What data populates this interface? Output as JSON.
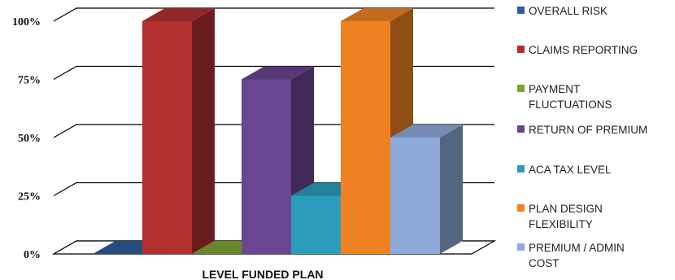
{
  "chart_data": {
    "type": "bar",
    "style": "3d-clustered-column",
    "categories": [
      "LEVEL FUNDED PLAN"
    ],
    "xlabel": "LEVEL FUNDED PLAN",
    "ylim": [
      0,
      100
    ],
    "ytick_labels": [
      "0%",
      "25%",
      "50%",
      "75%",
      "100%"
    ],
    "grid": true,
    "legend_position": "right",
    "series": [
      {
        "name": "OVERALL RISK",
        "values": [
          0
        ],
        "color": "#2E5E99"
      },
      {
        "name": "CLAIMS REPORTING",
        "values": [
          100
        ],
        "color": "#B23030"
      },
      {
        "name": "PAYMENT FLUCTUATIONS",
        "values": [
          0
        ],
        "color": "#7FA333"
      },
      {
        "name": "RETURN OF PREMIUM",
        "values": [
          75
        ],
        "color": "#6A4591"
      },
      {
        "name": "ACA TAX LEVEL",
        "values": [
          25
        ],
        "color": "#2B9DBA"
      },
      {
        "name": "PLAN DESIGN FLEXIBILITY",
        "values": [
          100
        ],
        "color": "#EE8222"
      },
      {
        "name": "PREMIUM / ADMIN COST",
        "values": [
          50
        ],
        "color": "#8EAADB"
      }
    ]
  },
  "legend": [
    {
      "lines": [
        "OVERALL RISK"
      ]
    },
    {
      "lines": [
        "CLAIMS REPORTING"
      ]
    },
    {
      "lines": [
        "PAYMENT",
        "FLUCTUATIONS"
      ]
    },
    {
      "lines": [
        "RETURN OF PREMIUM"
      ]
    },
    {
      "lines": [
        "ACA TAX LEVEL"
      ]
    },
    {
      "lines": [
        "PLAN DESIGN",
        "FLEXIBILITY"
      ]
    },
    {
      "lines": [
        "PREMIUM / ADMIN",
        "COST"
      ]
    }
  ]
}
